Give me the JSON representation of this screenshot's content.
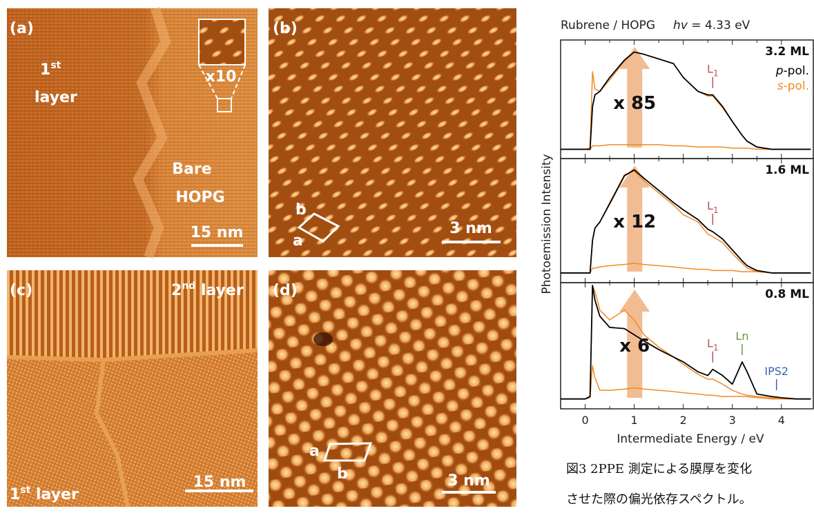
{
  "stm_panels": [
    {
      "label": "(a)",
      "region_left": {
        "line1": "1",
        "sup": "st",
        "line2": "layer"
      },
      "region_right": {
        "line1": "Bare",
        "line2": "HOPG"
      },
      "inset": "x10",
      "scale": "15 nm"
    },
    {
      "label": "(b)",
      "cell_a": "a",
      "cell_b": "b",
      "scale": "3 nm"
    },
    {
      "label": "(c)",
      "region_top": {
        "pre": "2",
        "sup": "nd",
        "post": " layer"
      },
      "region_bottom": {
        "pre": "1",
        "sup": "st",
        "post": " layer"
      },
      "scale": "15 nm"
    },
    {
      "label": "(d)",
      "cell_a": "a",
      "cell_b": "b",
      "scale": "3 nm"
    }
  ],
  "spectrum": {
    "type": "line",
    "title": "Rubrene / HOPG",
    "energy_symbol": "hv",
    "energy_value": " = 4.33 eV",
    "xlabel": "Intermediate Energy / eV",
    "ylabel": "Photoemission Intensity",
    "xlim": [
      -0.5,
      4.65
    ],
    "ylim": [
      0,
      1
    ],
    "xticks": [
      0,
      1,
      2,
      3,
      4
    ],
    "legend": [
      {
        "pre": "p",
        "post": "-pol.",
        "color": "#000000"
      },
      {
        "pre": "s",
        "post": "-pol.",
        "color": "#f08a24"
      }
    ],
    "x": [
      -0.5,
      0,
      0.1,
      0.15,
      0.2,
      0.3,
      0.5,
      0.8,
      1.0,
      1.2,
      1.5,
      1.8,
      2.0,
      2.3,
      2.5,
      2.6,
      2.8,
      3.0,
      3.2,
      3.3,
      3.5,
      3.8,
      4.0,
      4.3,
      4.6
    ],
    "panels": [
      {
        "label": "3.2 ML",
        "multiplier": "x 85",
        "peaks": [
          {
            "text": "L",
            "sub": "1",
            "x": 2.6,
            "color": "#b8505a"
          }
        ],
        "series": [
          {
            "color": "#f08a24",
            "values": [
              0.08,
              0.08,
              0.08,
              0.11,
              0.11,
              0.11,
              0.12,
              0.12,
              0.12,
              0.12,
              0.12,
              0.11,
              0.11,
              0.1,
              0.1,
              0.1,
              0.1,
              0.09,
              0.09,
              0.09,
              0.08,
              0.08,
              0.08,
              0.08,
              0.08
            ]
          },
          {
            "color": "#f08a24",
            "values": [
              0.08,
              0.08,
              0.09,
              0.75,
              0.6,
              0.58,
              0.68,
              0.84,
              0.92,
              0.9,
              0.86,
              0.82,
              0.7,
              0.58,
              0.54,
              0.54,
              0.44,
              0.32,
              0.2,
              0.15,
              0.1,
              0.08,
              0.08,
              0.08,
              0.08
            ]
          },
          {
            "color": "#000000",
            "values": [
              0.08,
              0.08,
              0.08,
              0.45,
              0.55,
              0.58,
              0.7,
              0.85,
              0.92,
              0.9,
              0.86,
              0.82,
              0.7,
              0.58,
              0.55,
              0.55,
              0.45,
              0.32,
              0.2,
              0.15,
              0.1,
              0.08,
              0.08,
              0.08,
              0.08
            ]
          }
        ]
      },
      {
        "label": "1.6 ML",
        "multiplier": "x 12",
        "peaks": [
          {
            "text": "L",
            "sub": "1",
            "x": 2.6,
            "color": "#b8505a"
          }
        ],
        "series": [
          {
            "color": "#f08a24",
            "values": [
              0.08,
              0.08,
              0.08,
              0.12,
              0.12,
              0.13,
              0.14,
              0.15,
              0.16,
              0.15,
              0.14,
              0.13,
              0.12,
              0.11,
              0.11,
              0.1,
              0.1,
              0.1,
              0.09,
              0.09,
              0.09,
              0.08,
              0.08,
              0.08,
              0.08
            ]
          },
          {
            "color": "#f08a24",
            "values": [
              0.08,
              0.08,
              0.08,
              0.35,
              0.45,
              0.5,
              0.66,
              0.89,
              0.92,
              0.84,
              0.74,
              0.64,
              0.56,
              0.5,
              0.4,
              0.38,
              0.33,
              0.24,
              0.16,
              0.12,
              0.09,
              0.08,
              0.08,
              0.08,
              0.08
            ]
          },
          {
            "color": "#000000",
            "values": [
              0.08,
              0.08,
              0.08,
              0.35,
              0.45,
              0.5,
              0.65,
              0.88,
              0.93,
              0.86,
              0.76,
              0.66,
              0.6,
              0.52,
              0.44,
              0.42,
              0.36,
              0.27,
              0.18,
              0.14,
              0.1,
              0.08,
              0.08,
              0.08,
              0.08
            ]
          }
        ]
      },
      {
        "label": "0.8 ML",
        "multiplier": "x 6",
        "peaks": [
          {
            "text": "L",
            "sub": "1",
            "x": 2.6,
            "color": "#b8505a"
          },
          {
            "text": "Ln",
            "x": 3.2,
            "color": "#6a9a30"
          },
          {
            "text": "IPS2",
            "x": 3.9,
            "color": "#3a64a8"
          }
        ],
        "series": [
          {
            "color": "#f08a24",
            "values": [
              0.08,
              0.08,
              0.09,
              0.35,
              0.25,
              0.15,
              0.15,
              0.16,
              0.17,
              0.16,
              0.15,
              0.14,
              0.13,
              0.12,
              0.11,
              0.11,
              0.1,
              0.1,
              0.1,
              0.1,
              0.09,
              0.08,
              0.08,
              0.08,
              0.08
            ]
          },
          {
            "color": "#f08a24",
            "values": [
              0.08,
              0.08,
              0.1,
              1.0,
              0.95,
              0.8,
              0.72,
              0.8,
              0.72,
              0.6,
              0.5,
              0.42,
              0.36,
              0.28,
              0.24,
              0.24,
              0.2,
              0.15,
              0.12,
              0.11,
              0.1,
              0.09,
              0.08,
              0.08,
              0.08
            ]
          },
          {
            "color": "#000000",
            "values": [
              0.08,
              0.08,
              0.1,
              1.0,
              0.88,
              0.75,
              0.66,
              0.65,
              0.6,
              0.55,
              0.48,
              0.42,
              0.38,
              0.3,
              0.27,
              0.32,
              0.27,
              0.2,
              0.38,
              0.3,
              0.12,
              0.1,
              0.09,
              0.08,
              0.08
            ]
          }
        ]
      }
    ]
  },
  "caption": [
    "図3 2PPE 測定による膜厚を変化",
    "させた際の偏光依存スペクトル。"
  ]
}
